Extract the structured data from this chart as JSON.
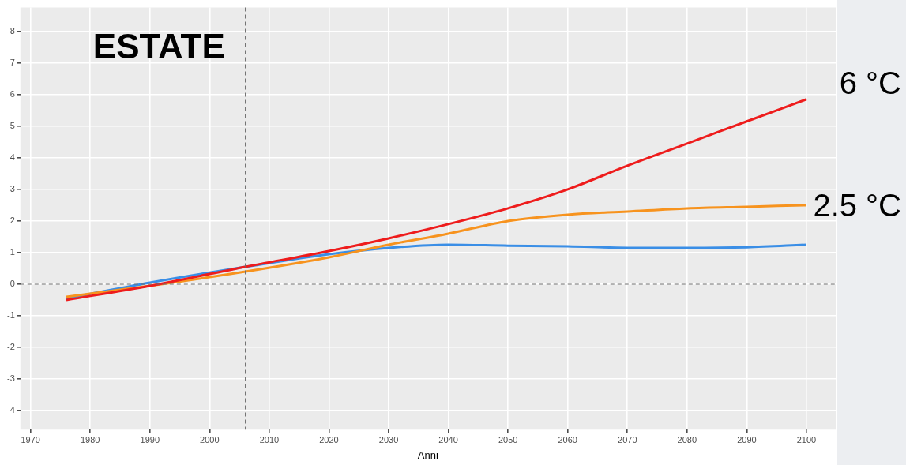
{
  "chart_data": {
    "type": "line",
    "xlabel": "Anni",
    "annotations": [
      "ESTATE",
      "6 °C",
      "2.5 °C"
    ],
    "x": [
      1976,
      1990,
      2006,
      2020,
      2030,
      2040,
      2050,
      2060,
      2070,
      2080,
      2090,
      2100
    ],
    "series": [
      {
        "color": "#3a8ee6",
        "values": [
          -0.45,
          0.05,
          0.55,
          0.95,
          1.15,
          1.25,
          1.22,
          1.2,
          1.15,
          1.15,
          1.17,
          1.25
        ]
      },
      {
        "color": "#f7931e",
        "values": [
          -0.4,
          -0.05,
          0.4,
          0.85,
          1.25,
          1.6,
          2.0,
          2.2,
          2.3,
          2.4,
          2.45,
          2.5
        ]
      },
      {
        "color": "#ee1c1c",
        "values": [
          -0.5,
          -0.05,
          0.55,
          1.05,
          1.45,
          1.9,
          2.4,
          3.0,
          3.75,
          4.45,
          5.15,
          5.85
        ]
      }
    ],
    "xlim": [
      1968.3,
      2104.9
    ],
    "xticks": [
      1970,
      1980,
      1990,
      2000,
      2010,
      2020,
      2030,
      2040,
      2050,
      2060,
      2070,
      2080,
      2090,
      2100
    ],
    "ylim": [
      -4.6,
      8.75
    ],
    "yticks": [
      -4,
      -3,
      -2,
      -1,
      0,
      1,
      2,
      3,
      4,
      5,
      6,
      7,
      8
    ],
    "ref_lines": [
      {
        "axis": "x",
        "value": 2006,
        "color": "#6e6e6e",
        "line_style": "dashed"
      },
      {
        "axis": "y",
        "value": 0,
        "color": "#6e6e6e",
        "line_style": "dashed"
      }
    ],
    "grid": true,
    "marker": "none",
    "line_style": "solid"
  }
}
